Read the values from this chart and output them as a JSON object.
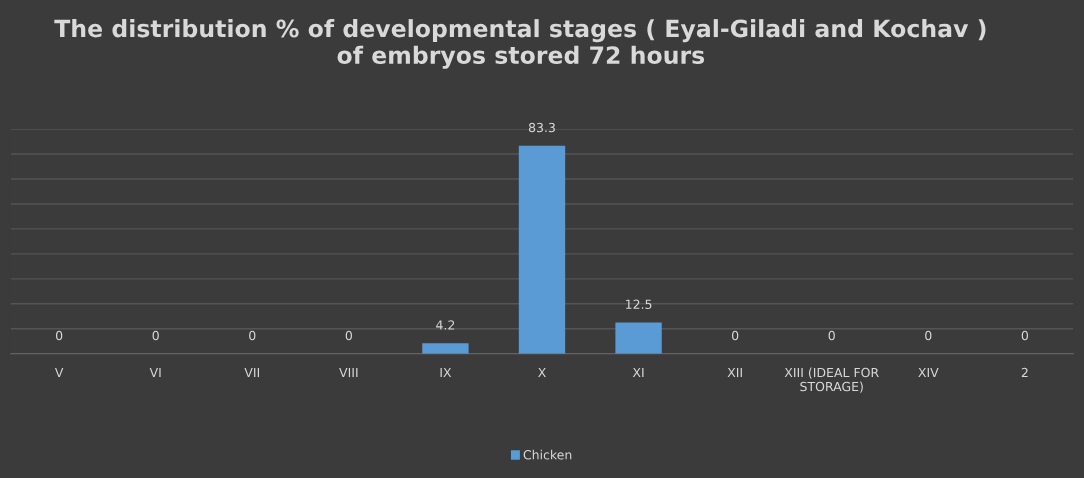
{
  "chart_data": {
    "type": "bar",
    "title": "The distribution % of developmental stages ( Eyal-Giladi and Kochav )\nof embryos stored 72 hours",
    "categories": [
      "V",
      "VI",
      "VII",
      "VIII",
      "IX",
      "X",
      "XI",
      "XII",
      "XIII (IDEAL FOR\nSTORAGE)",
      "XIV",
      "2"
    ],
    "series": [
      {
        "name": "Chicken",
        "color": "#5b9bd5",
        "values": [
          0,
          0,
          0,
          0,
          4.2,
          83.3,
          12.5,
          0,
          0,
          0,
          0
        ]
      }
    ],
    "ylim": [
      0,
      90
    ],
    "yticks": [
      {
        "value": 0,
        "label": null
      },
      {
        "value": 10,
        "label": null
      },
      {
        "value": 20,
        "label": null
      },
      {
        "value": 30,
        "label": null
      },
      {
        "value": 40,
        "label": null
      },
      {
        "value": 50,
        "label": null
      },
      {
        "value": 60,
        "label": null
      },
      {
        "value": 70,
        "label": null
      },
      {
        "value": 80,
        "label": null
      },
      {
        "value": 90,
        "label": null
      }
    ],
    "tick_labels": "x",
    "grid": "y",
    "data_labels": true,
    "legend": "bottom"
  }
}
